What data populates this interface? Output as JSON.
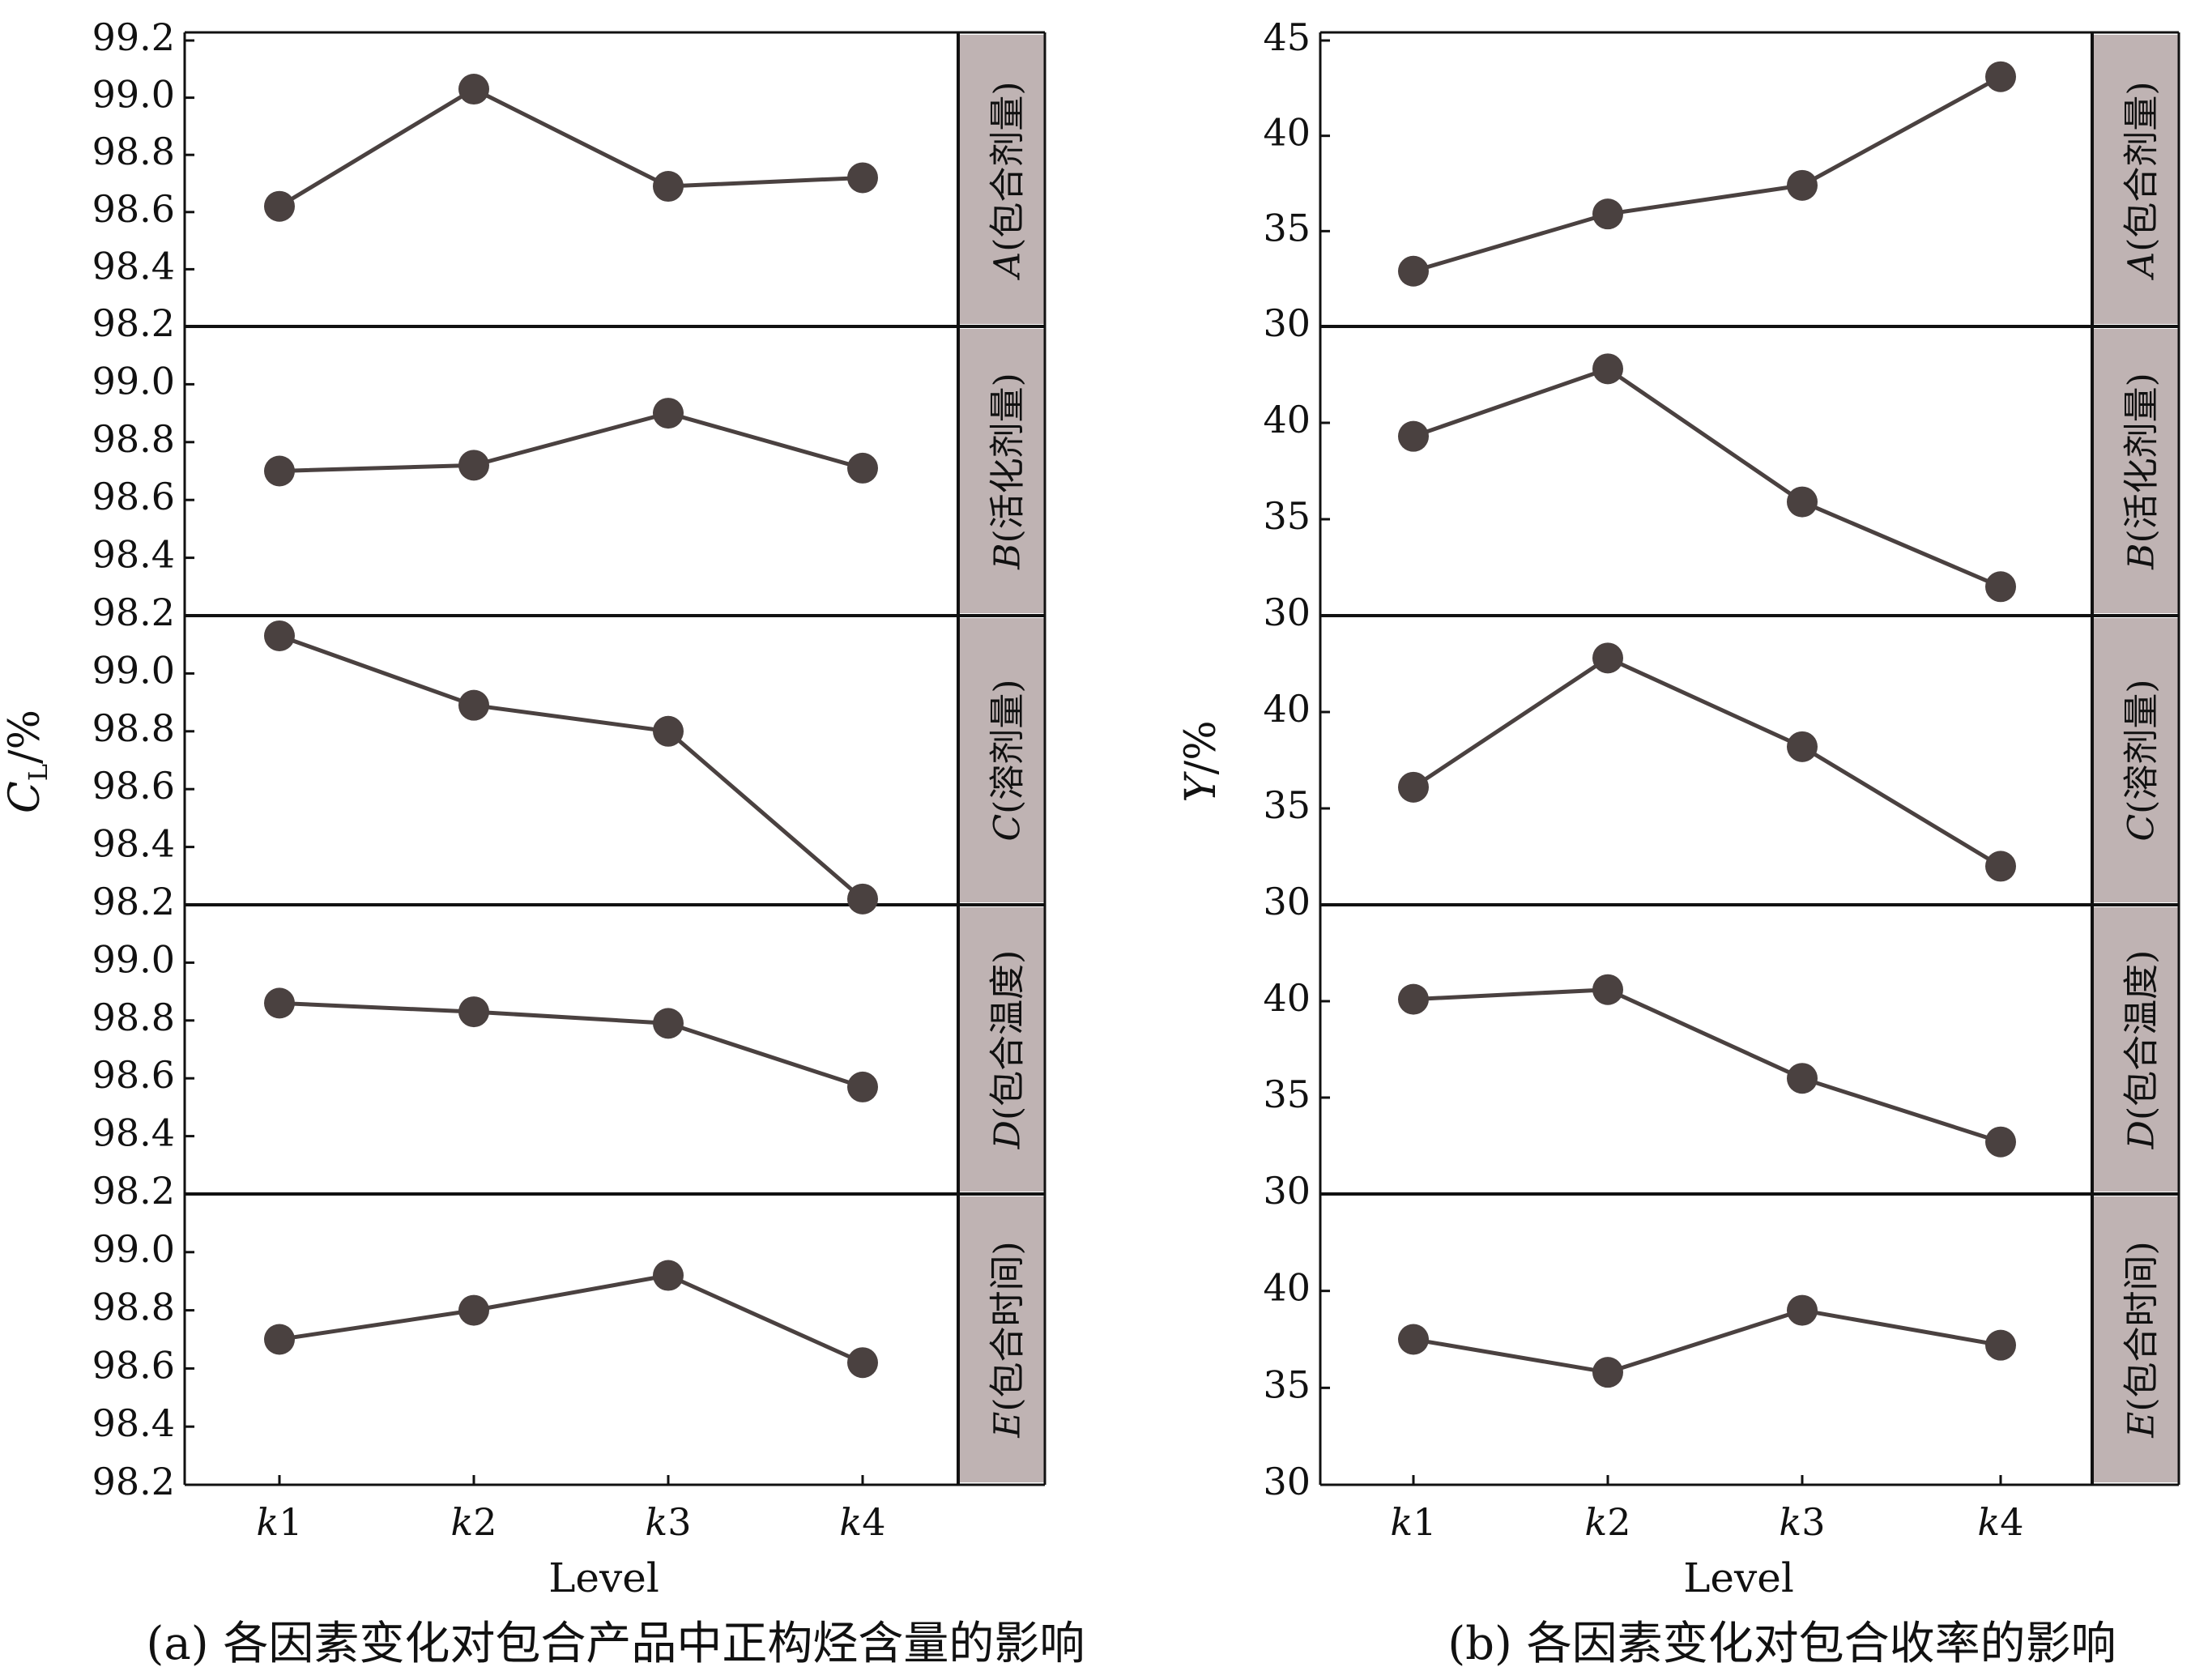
{
  "colors": {
    "line": "#4a4140",
    "marker": "#4a4140",
    "strip": "#bfb3b3",
    "axis": "#111111"
  },
  "chart_data": [
    {
      "type": "line",
      "ylabel_main": "C",
      "ylabel_sub": "L",
      "ylabel_suffix": "/%",
      "xlabel": "Level",
      "caption": "(a) 各因素变化对包合产品中正构烃含量的影响",
      "categories": [
        {
          "italic": "k",
          "num": "1"
        },
        {
          "italic": "k",
          "num": "2"
        },
        {
          "italic": "k",
          "num": "3"
        },
        {
          "italic": "k",
          "num": "4"
        }
      ],
      "ylim": [
        98.2,
        99.2
      ],
      "yticks": [
        "98.2",
        "98.4",
        "98.6",
        "98.8",
        "99.0",
        "99.2"
      ],
      "panels": [
        {
          "factor": "A",
          "label": "(包合剂量)",
          "values": [
            98.62,
            99.03,
            98.69,
            98.72
          ]
        },
        {
          "factor": "B",
          "label": "(活化剂量)",
          "values": [
            98.7,
            98.72,
            98.9,
            98.71
          ]
        },
        {
          "factor": "C",
          "label": "(溶剂量)",
          "values": [
            99.13,
            98.89,
            98.8,
            98.22
          ]
        },
        {
          "factor": "D",
          "label": "(包合温度)",
          "values": [
            98.86,
            98.83,
            98.79,
            98.57
          ]
        },
        {
          "factor": "E",
          "label": "(包合时间)",
          "values": [
            98.7,
            98.8,
            98.92,
            98.62
          ]
        }
      ]
    },
    {
      "type": "line",
      "ylabel_main": "Y",
      "ylabel_sub": "",
      "ylabel_suffix": "/%",
      "xlabel": "Level",
      "caption": "(b) 各因素变化对包合收率的影响",
      "categories": [
        {
          "italic": "k",
          "num": "1"
        },
        {
          "italic": "k",
          "num": "2"
        },
        {
          "italic": "k",
          "num": "3"
        },
        {
          "italic": "k",
          "num": "4"
        }
      ],
      "ylim": [
        30,
        45
      ],
      "yticks": [
        "30",
        "35",
        "40",
        "45"
      ],
      "panels": [
        {
          "factor": "A",
          "label": "(包合剂量)",
          "values": [
            32.9,
            35.9,
            37.4,
            43.1
          ]
        },
        {
          "factor": "B",
          "label": "(活化剂量)",
          "values": [
            39.3,
            42.8,
            35.9,
            31.5
          ]
        },
        {
          "factor": "C",
          "label": "(溶剂量)",
          "values": [
            36.1,
            42.8,
            38.2,
            32.0
          ]
        },
        {
          "factor": "D",
          "label": "(包合温度)",
          "values": [
            40.1,
            40.6,
            36.0,
            32.7
          ]
        },
        {
          "factor": "E",
          "label": "(包合时间)",
          "values": [
            37.5,
            35.8,
            39.0,
            37.2
          ]
        }
      ]
    }
  ]
}
